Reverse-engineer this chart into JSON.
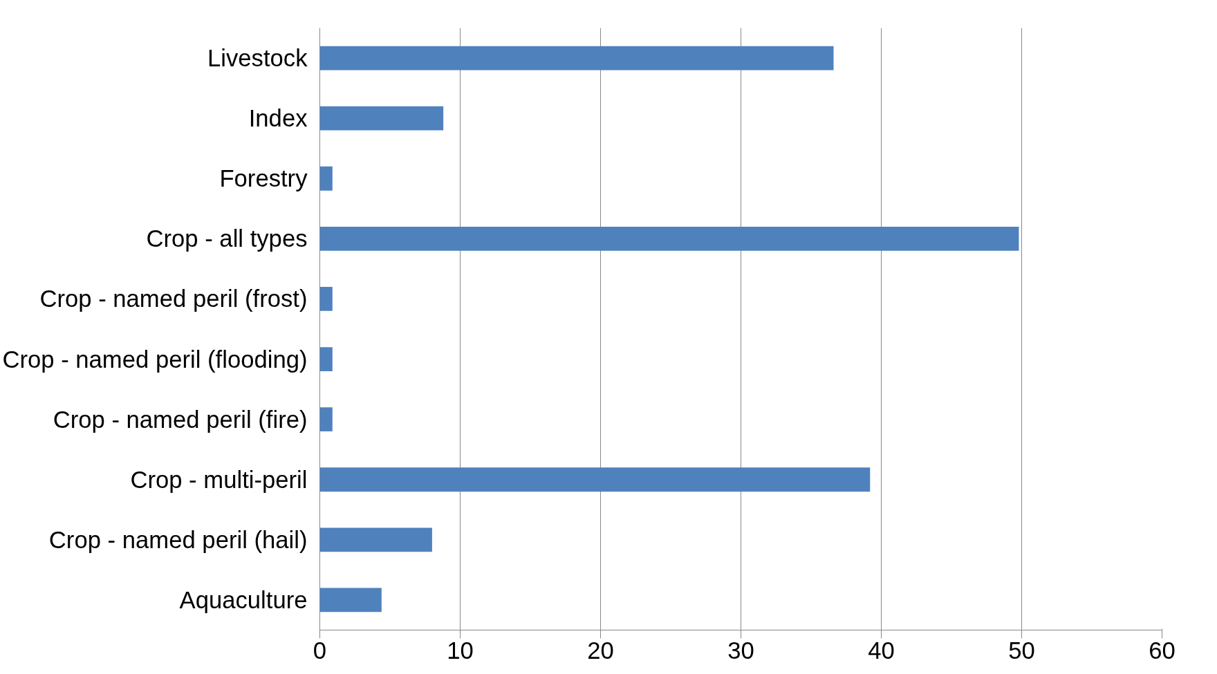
{
  "chart_data": {
    "type": "bar",
    "orientation": "horizontal",
    "categories": [
      "Livestock",
      "Index",
      "Forestry",
      "Crop - all types",
      "Crop - named peril (frost)",
      "Crop - named peril (flooding)",
      "Crop - named peril (fire)",
      "Crop - multi-peril",
      "Crop - named peril (hail)",
      "Aquaculture"
    ],
    "values": [
      36.6,
      8.8,
      0.9,
      49.8,
      0.9,
      0.9,
      0.9,
      39.2,
      8.0,
      4.4
    ],
    "color": "#4f81bd",
    "xlim": [
      0,
      60
    ],
    "xticks": [
      0,
      10,
      20,
      30,
      40,
      50,
      60
    ],
    "grid": "x"
  }
}
